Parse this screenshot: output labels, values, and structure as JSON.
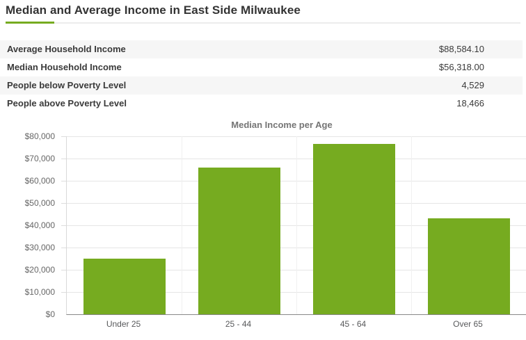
{
  "title": "Median and Average Income in East Side Milwaukee",
  "accent_color": "#76ab20",
  "summary_table": {
    "rows": [
      {
        "label": "Average Household Income",
        "value": "$88,584.10"
      },
      {
        "label": "Median Household Income",
        "value": "$56,318.00"
      },
      {
        "label": "People below Poverty Level",
        "value": "4,529"
      },
      {
        "label": "People above Poverty Level",
        "value": "18,466"
      }
    ]
  },
  "chart_data": {
    "type": "bar",
    "title": "Median Income per Age",
    "categories": [
      "Under 25",
      "25 - 44",
      "45 - 64",
      "Over 65"
    ],
    "values": [
      25100,
      66000,
      76500,
      43000
    ],
    "xlabel": "",
    "ylabel": "",
    "ylim": [
      0,
      80000
    ],
    "y_tick_step": 10000,
    "y_tick_labels": [
      "$0",
      "$10,000",
      "$20,000",
      "$30,000",
      "$40,000",
      "$50,000",
      "$60,000",
      "$70,000",
      "$80,000"
    ],
    "grid": true,
    "legend_position": "none",
    "bar_color": "#76ab20"
  }
}
